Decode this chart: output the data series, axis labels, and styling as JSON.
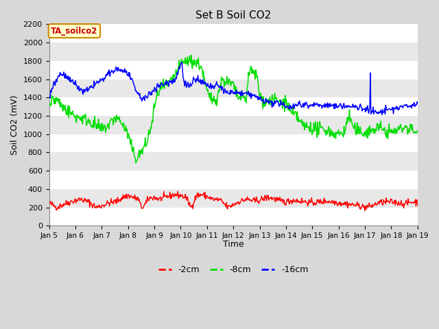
{
  "title": "Set B Soil CO2",
  "ylabel": "Soil CO2 (mV)",
  "xlabel": "Time",
  "ylim": [
    0,
    2200
  ],
  "yticks": [
    0,
    200,
    400,
    600,
    800,
    1000,
    1200,
    1400,
    1600,
    1800,
    2000,
    2200
  ],
  "xtick_labels": [
    "Jan 5",
    "Jan 6",
    "Jan 7",
    "Jan 8",
    "Jan 9",
    "Jan 10",
    "Jan 11",
    "Jan 12",
    "Jan 13",
    "Jan 14",
    "Jan 15",
    "Jan 16",
    "Jan 17",
    "Jan 18",
    "Jan 19"
  ],
  "label_2cm": "-2cm",
  "label_8cm": "-8cm",
  "label_16cm": "-16cm",
  "color_2cm": "#ff0000",
  "color_8cm": "#00dd00",
  "color_16cm": "#0000ff",
  "fig_bg_color": "#d8d8d8",
  "plot_bg_color": "#f5f5f5",
  "annotation_text": "TA_soilco2",
  "annotation_bg": "#ffffcc",
  "annotation_border": "#cc8800",
  "grid_color": "#ffffff",
  "band_color": "#e8e8e8"
}
